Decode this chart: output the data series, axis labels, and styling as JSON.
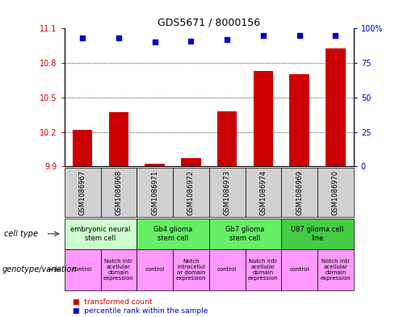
{
  "title": "GDS5671 / 8000156",
  "samples": [
    "GSM1086967",
    "GSM1086968",
    "GSM1086971",
    "GSM1086972",
    "GSM1086973",
    "GSM1086974",
    "GSM1086969",
    "GSM1086970"
  ],
  "bar_values": [
    10.22,
    10.37,
    9.92,
    9.97,
    10.38,
    10.73,
    10.7,
    10.93
  ],
  "scatter_values": [
    93,
    93,
    90,
    91,
    92,
    95,
    95,
    95
  ],
  "bar_bottom": 9.9,
  "ylim_left": [
    9.9,
    11.1
  ],
  "ylim_right": [
    0,
    100
  ],
  "yticks_left": [
    9.9,
    10.2,
    10.5,
    10.8,
    11.1
  ],
  "yticks_right": [
    0,
    25,
    50,
    75,
    100
  ],
  "grid_lines": [
    10.2,
    10.5,
    10.8
  ],
  "bar_color": "#cc0000",
  "scatter_color": "#0000cc",
  "cell_types": [
    {
      "label": "embryonic neural\nstem cell",
      "start": 0,
      "end": 2,
      "color": "#ccffcc"
    },
    {
      "label": "Gb4 glioma\nstem cell",
      "start": 2,
      "end": 4,
      "color": "#66ee66"
    },
    {
      "label": "Gb7 glioma\nstem cell",
      "start": 4,
      "end": 6,
      "color": "#66ee66"
    },
    {
      "label": "U87 glioma cell\nline",
      "start": 6,
      "end": 8,
      "color": "#44cc44"
    }
  ],
  "genotype_labels": [
    {
      "label": "control",
      "start": 0,
      "end": 1,
      "color": "#ff99ff"
    },
    {
      "label": "Notch intr\nacellular\ndomain\nexpression",
      "start": 1,
      "end": 2,
      "color": "#ff99ff"
    },
    {
      "label": "control",
      "start": 2,
      "end": 3,
      "color": "#ff99ff"
    },
    {
      "label": "Notch\nintracellul\nar domain\nexpression",
      "start": 3,
      "end": 4,
      "color": "#ff99ff"
    },
    {
      "label": "control",
      "start": 4,
      "end": 5,
      "color": "#ff99ff"
    },
    {
      "label": "Notch intr\nacellular\ndomain\nexpression",
      "start": 5,
      "end": 6,
      "color": "#ff99ff"
    },
    {
      "label": "control",
      "start": 6,
      "end": 7,
      "color": "#ff99ff"
    },
    {
      "label": "Notch intr\nacellular\ndomain\nexpression",
      "start": 7,
      "end": 8,
      "color": "#ff99ff"
    }
  ],
  "legend_bar_label": "transformed count",
  "legend_scatter_label": "percentile rank within the sample",
  "cell_type_label": "cell type",
  "genotype_label": "genotype/variation",
  "label_fontsize": 7,
  "tick_fontsize": 7,
  "sample_fontsize": 6,
  "cell_fontsize": 6,
  "geno_fontsize": 5
}
